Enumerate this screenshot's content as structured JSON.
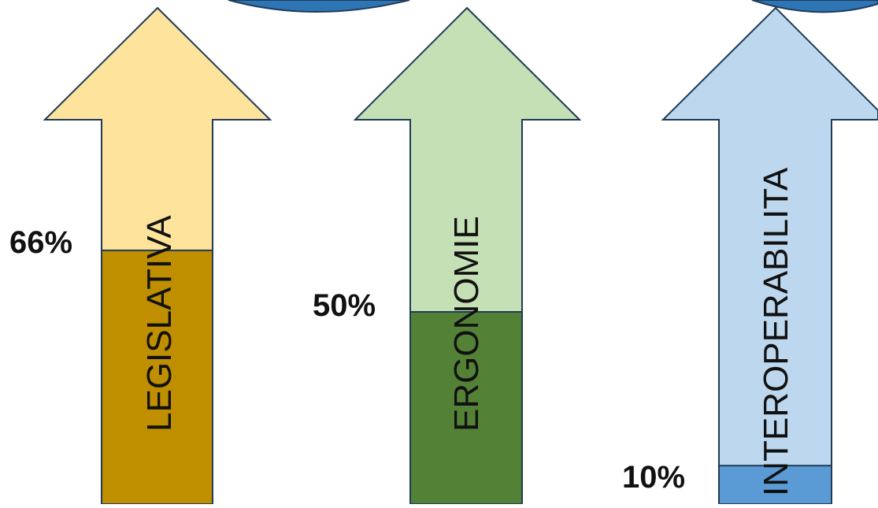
{
  "arrows": [
    {
      "label": "LEGISLATIVA",
      "percent_label": "66%",
      "fill_fraction": 0.66,
      "light_color": "#FDE39B",
      "fill_color": "#BF8F00"
    },
    {
      "label": "ERGONOMIE",
      "percent_label": "50%",
      "fill_fraction": 0.5,
      "light_color": "#C5E0B4",
      "fill_color": "#538135"
    },
    {
      "label": "INTEROPERABILITA",
      "percent_label": "10%",
      "fill_fraction": 0.1,
      "light_color": "#BDD7EE",
      "fill_color": "#5B9BD5"
    }
  ],
  "colors": {
    "outline": "#1F3B57",
    "top_blob": "#2E75B6"
  }
}
